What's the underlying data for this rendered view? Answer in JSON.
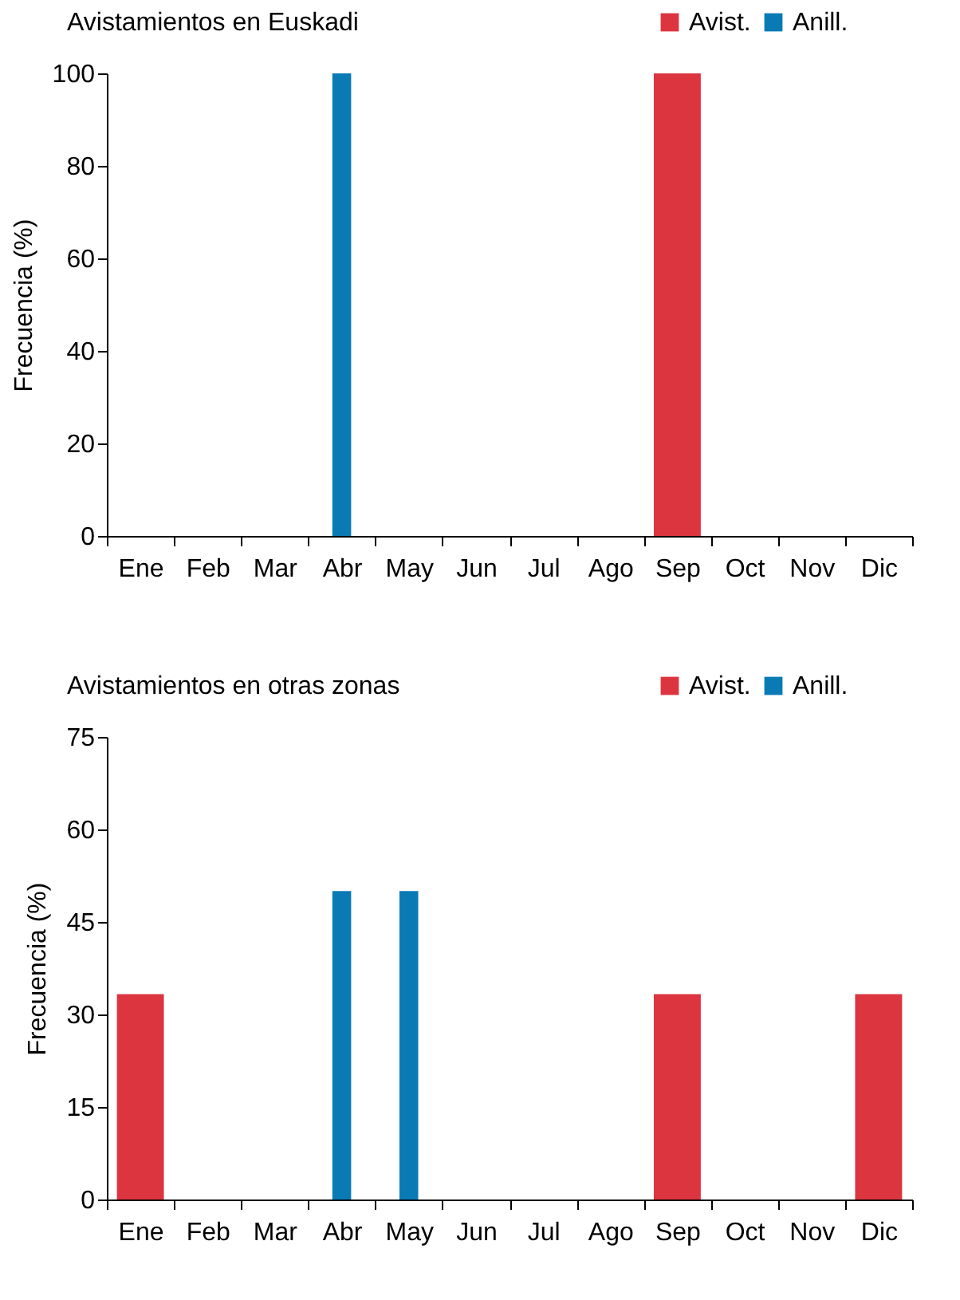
{
  "chart_data": [
    {
      "type": "bar",
      "title": "Avistamientos en Euskadi",
      "ylabel": "Frecuencia (%)",
      "categories": [
        "Ene",
        "Feb",
        "Mar",
        "Abr",
        "May",
        "Jun",
        "Jul",
        "Ago",
        "Sep",
        "Oct",
        "Nov",
        "Dic"
      ],
      "series": [
        {
          "name": "Avist.",
          "color": "#dc3540",
          "values": [
            0,
            0,
            0,
            0,
            0,
            0,
            0,
            0,
            100,
            0,
            0,
            0
          ]
        },
        {
          "name": "Anill.",
          "color": "#0a7ab5",
          "values": [
            0,
            0,
            0,
            100,
            0,
            0,
            0,
            0,
            0,
            0,
            0,
            0
          ]
        }
      ],
      "ylim": [
        0,
        100
      ],
      "yticks": [
        0,
        20,
        40,
        60,
        80,
        100
      ],
      "grid": false,
      "legend": "top right"
    },
    {
      "type": "bar",
      "title": "Avistamientos en otras zonas",
      "ylabel": "Frecuencia (%)",
      "categories": [
        "Ene",
        "Feb",
        "Mar",
        "Abr",
        "May",
        "Jun",
        "Jul",
        "Ago",
        "Sep",
        "Oct",
        "Nov",
        "Dic"
      ],
      "series": [
        {
          "name": "Avist.",
          "color": "#dc3540",
          "values": [
            33.3,
            0,
            0,
            0,
            0,
            0,
            0,
            0,
            33.3,
            0,
            0,
            33.3
          ]
        },
        {
          "name": "Anill.",
          "color": "#0a7ab5",
          "values": [
            0,
            0,
            0,
            50,
            50,
            0,
            0,
            0,
            0,
            0,
            0,
            0
          ]
        }
      ],
      "ylim": [
        0,
        75
      ],
      "yticks": [
        0,
        15,
        30,
        45,
        60,
        75
      ],
      "grid": false,
      "legend": "top right"
    }
  ]
}
